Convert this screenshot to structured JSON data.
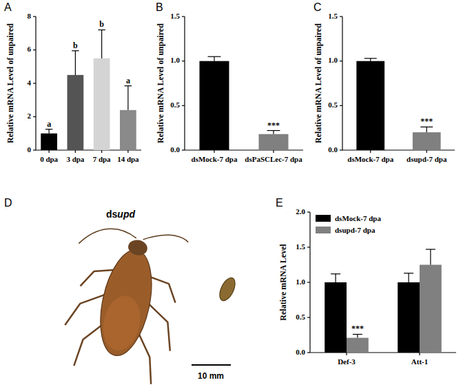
{
  "chart_data": [
    {
      "panel_label": "A",
      "type": "bar",
      "y_label": "Relative mRNA Level of unpaired",
      "categories": [
        "0 dpa",
        "3 dpa",
        "7 dpa",
        "14 dpa"
      ],
      "values": [
        1.0,
        4.5,
        5.5,
        2.4
      ],
      "errors": [
        0.25,
        1.45,
        1.7,
        1.45
      ],
      "annotations": [
        "a",
        "b",
        "b",
        "a"
      ],
      "colors": [
        "#000000",
        "#545454",
        "#d4d4d4",
        "#8a8a8a"
      ],
      "ylim": [
        0,
        8
      ],
      "yticks": [
        0,
        2,
        4,
        6,
        8
      ]
    },
    {
      "panel_label": "B",
      "type": "bar",
      "y_label": "Relative mRNA Level of unpaired",
      "categories": [
        "dsMock-7 dpa",
        "dsPaSCLec-7 dpa"
      ],
      "values": [
        1.0,
        0.18
      ],
      "errors": [
        0.05,
        0.04
      ],
      "annotations": [
        null,
        "***"
      ],
      "colors": [
        "#000000",
        "#808080"
      ],
      "ylim": [
        0,
        1.5
      ],
      "yticks": [
        {
          "value": 0,
          "label": "0.0"
        },
        {
          "value": 0.5,
          "label": "0.5"
        },
        {
          "value": 1,
          "label": "1.0"
        },
        {
          "value": 1.5,
          "label": "1.5"
        }
      ]
    },
    {
      "panel_label": "C",
      "type": "bar",
      "y_label": "Relative mRNA Level of unpaired",
      "categories": [
        "dsMock-7 dpa",
        "dsupd-7 dpa"
      ],
      "values": [
        1.0,
        0.2
      ],
      "errors": [
        0.03,
        0.06
      ],
      "annotations": [
        null,
        "***"
      ],
      "colors": [
        "#000000",
        "#808080"
      ],
      "ylim": [
        0,
        1.5
      ],
      "yticks": [
        {
          "value": 0,
          "label": "0.0"
        },
        {
          "value": 0.5,
          "label": "0.5"
        },
        {
          "value": 1,
          "label": "1.0"
        },
        {
          "value": 1.5,
          "label": "1.5"
        }
      ]
    },
    {
      "panel_label": "E",
      "type": "bar",
      "y_label": "Relative mRNA Level",
      "categories": [
        "Def-3",
        "Att-1"
      ],
      "series": [
        {
          "name": "dsMock-7 dpa",
          "color": "#000000",
          "values": [
            1.0,
            1.0
          ],
          "errors": [
            0.12,
            0.13
          ]
        },
        {
          "name": "dsupd-7 dpa",
          "color": "#808080",
          "values": [
            0.21,
            1.25
          ],
          "errors": [
            0.05,
            0.22
          ],
          "annotations": [
            "***",
            null
          ]
        }
      ],
      "legend": "top-left",
      "ylim": [
        0,
        2
      ],
      "yticks": [
        {
          "value": 0,
          "label": "0.0"
        },
        {
          "value": 0.5,
          "label": "0.5"
        },
        {
          "value": 1,
          "label": "1.0"
        },
        {
          "value": 1.5,
          "label": "1.5"
        },
        {
          "value": 2,
          "label": "2.0"
        }
      ]
    }
  ],
  "photo_panel": {
    "panel_label": "D",
    "label": "dsupd",
    "scale_label": "10 mm"
  }
}
